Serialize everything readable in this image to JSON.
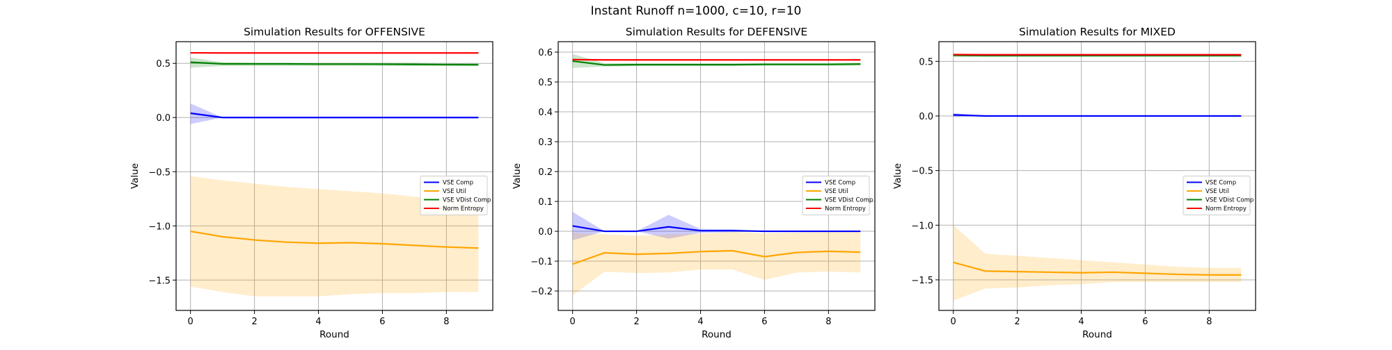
{
  "figure": {
    "suptitle": "Instant Runoff n=1000, c=10, r=10"
  },
  "colors": {
    "VSE Comp": "#0000ff",
    "VSE Util": "#ffa500",
    "VSE VDist Comp": "#008000",
    "Norm Entropy": "#ff0000"
  },
  "chart_data": [
    {
      "type": "line",
      "title": "Simulation Results for OFFENSIVE",
      "xlabel": "Round",
      "ylabel": "Value",
      "xlim": [
        -0.45,
        9.45
      ],
      "ylim": [
        -1.78,
        0.7
      ],
      "xticks": [
        0,
        2,
        4,
        6,
        8
      ],
      "yticks": [
        -1.5,
        -1.0,
        -0.5,
        0.0,
        0.5
      ],
      "ytick_labels": [
        "−1.5",
        "−1.0",
        "−0.5",
        "0.0",
        "0.5"
      ],
      "grid": true,
      "legend": "center-right",
      "x": [
        0,
        1,
        2,
        3,
        4,
        5,
        6,
        7,
        8,
        9
      ],
      "series": [
        {
          "name": "VSE Comp",
          "values": [
            0.04,
            0.0,
            0.0,
            0.0,
            0.0,
            0.0,
            0.0,
            0.0,
            0.0,
            0.0
          ],
          "lower": [
            -0.06,
            0.0,
            0.0,
            0.0,
            0.0,
            0.0,
            0.0,
            0.0,
            0.0,
            0.0
          ],
          "upper": [
            0.13,
            0.0,
            0.0,
            0.0,
            0.0,
            0.0,
            0.0,
            0.0,
            0.0,
            0.0
          ]
        },
        {
          "name": "VSE Util",
          "values": [
            -1.05,
            -1.1,
            -1.13,
            -1.15,
            -1.16,
            -1.155,
            -1.165,
            -1.18,
            -1.195,
            -1.205
          ],
          "lower": [
            -1.56,
            -1.61,
            -1.65,
            -1.65,
            -1.65,
            -1.63,
            -1.62,
            -1.62,
            -1.61,
            -1.61
          ],
          "upper": [
            -0.54,
            -0.58,
            -0.61,
            -0.64,
            -0.66,
            -0.68,
            -0.7,
            -0.73,
            -0.76,
            -0.8
          ]
        },
        {
          "name": "VSE VDist Comp",
          "values": [
            0.51,
            0.495,
            0.495,
            0.495,
            0.493,
            0.493,
            0.492,
            0.49,
            0.488,
            0.487
          ],
          "lower": [
            0.46,
            0.475,
            0.475,
            0.475,
            0.475,
            0.475,
            0.475,
            0.475,
            0.475,
            0.475
          ],
          "upper": [
            0.555,
            0.51,
            0.505,
            0.505,
            0.505,
            0.505,
            0.505,
            0.505,
            0.503,
            0.5
          ]
        },
        {
          "name": "Norm Entropy",
          "values": [
            0.597,
            0.596,
            0.596,
            0.596,
            0.596,
            0.596,
            0.596,
            0.596,
            0.596,
            0.596
          ]
        }
      ]
    },
    {
      "type": "line",
      "title": "Simulation Results for DEFENSIVE",
      "xlabel": "Round",
      "ylabel": "Value",
      "xlim": [
        -0.45,
        9.45
      ],
      "ylim": [
        -0.265,
        0.635
      ],
      "xticks": [
        0,
        2,
        4,
        6,
        8
      ],
      "yticks": [
        -0.2,
        -0.1,
        0.0,
        0.1,
        0.2,
        0.3,
        0.4,
        0.5,
        0.6
      ],
      "ytick_labels": [
        "−0.2",
        "−0.1",
        "0.0",
        "0.1",
        "0.2",
        "0.3",
        "0.4",
        "0.5",
        "0.6"
      ],
      "grid": true,
      "legend": "center-right",
      "x": [
        0,
        1,
        2,
        3,
        4,
        5,
        6,
        7,
        8,
        9
      ],
      "series": [
        {
          "name": "VSE Comp",
          "values": [
            0.018,
            0.0,
            0.0,
            0.015,
            0.002,
            0.002,
            0.0,
            0.0,
            0.0,
            0.0
          ],
          "lower": [
            -0.03,
            0.0,
            0.0,
            -0.025,
            -0.005,
            -0.003,
            0.0,
            0.0,
            0.0,
            0.0
          ],
          "upper": [
            0.065,
            0.0,
            0.0,
            0.055,
            0.008,
            0.007,
            0.0,
            0.0,
            0.0,
            0.0
          ]
        },
        {
          "name": "VSE Util",
          "values": [
            -0.11,
            -0.072,
            -0.077,
            -0.074,
            -0.068,
            -0.065,
            -0.085,
            -0.071,
            -0.067,
            -0.07
          ],
          "lower": [
            -0.215,
            -0.135,
            -0.14,
            -0.138,
            -0.128,
            -0.128,
            -0.163,
            -0.138,
            -0.135,
            -0.138
          ],
          "upper": [
            -0.005,
            -0.01,
            -0.015,
            -0.01,
            -0.008,
            -0.002,
            -0.007,
            -0.004,
            -0.002,
            -0.002
          ]
        },
        {
          "name": "VSE VDist Comp",
          "values": [
            0.57,
            0.557,
            0.558,
            0.558,
            0.558,
            0.558,
            0.559,
            0.559,
            0.559,
            0.56
          ],
          "lower": [
            0.547,
            0.552,
            0.553,
            0.553,
            0.553,
            0.553,
            0.554,
            0.554,
            0.554,
            0.555
          ],
          "upper": [
            0.594,
            0.563,
            0.563,
            0.563,
            0.563,
            0.563,
            0.564,
            0.564,
            0.564,
            0.565
          ]
        },
        {
          "name": "Norm Entropy",
          "values": [
            0.575,
            0.574,
            0.574,
            0.574,
            0.574,
            0.574,
            0.574,
            0.574,
            0.574,
            0.574
          ]
        }
      ]
    },
    {
      "type": "line",
      "title": "Simulation Results for MIXED",
      "xlabel": "Round",
      "ylabel": "Value",
      "xlim": [
        -0.45,
        9.45
      ],
      "ylim": [
        -1.78,
        0.68
      ],
      "xticks": [
        0,
        2,
        4,
        6,
        8
      ],
      "yticks": [
        -1.5,
        -1.0,
        -0.5,
        0.0,
        0.5
      ],
      "ytick_labels": [
        "−1.5",
        "−1.0",
        "−0.5",
        "0.0",
        "0.5"
      ],
      "grid": true,
      "legend": "center-right",
      "x": [
        0,
        1,
        2,
        3,
        4,
        5,
        6,
        7,
        8,
        9
      ],
      "series": [
        {
          "name": "VSE Comp",
          "values": [
            0.01,
            0.0,
            0.0,
            0.0,
            0.0,
            0.0,
            0.0,
            0.0,
            0.0,
            0.0
          ],
          "lower": [
            -0.01,
            0.0,
            0.0,
            0.0,
            0.0,
            0.0,
            0.0,
            0.0,
            0.0,
            0.0
          ],
          "upper": [
            0.025,
            0.0,
            0.0,
            0.0,
            0.0,
            0.0,
            0.0,
            0.0,
            0.0,
            0.0
          ]
        },
        {
          "name": "VSE Util",
          "values": [
            -1.34,
            -1.42,
            -1.425,
            -1.43,
            -1.435,
            -1.43,
            -1.44,
            -1.45,
            -1.455,
            -1.455
          ],
          "lower": [
            -1.69,
            -1.58,
            -1.57,
            -1.55,
            -1.54,
            -1.52,
            -1.52,
            -1.52,
            -1.52,
            -1.52
          ],
          "upper": [
            -1.0,
            -1.26,
            -1.28,
            -1.3,
            -1.32,
            -1.34,
            -1.36,
            -1.38,
            -1.39,
            -1.39
          ]
        },
        {
          "name": "VSE VDist Comp",
          "values": [
            0.555,
            0.553,
            0.553,
            0.553,
            0.553,
            0.553,
            0.553,
            0.553,
            0.553,
            0.553
          ],
          "lower": [
            0.54,
            0.54,
            0.54,
            0.54,
            0.54,
            0.54,
            0.54,
            0.54,
            0.54,
            0.54
          ],
          "upper": [
            0.57,
            0.568,
            0.568,
            0.568,
            0.568,
            0.568,
            0.568,
            0.568,
            0.568,
            0.568
          ]
        },
        {
          "name": "Norm Entropy",
          "values": [
            0.562,
            0.56,
            0.56,
            0.56,
            0.56,
            0.56,
            0.56,
            0.56,
            0.56,
            0.56
          ]
        }
      ]
    }
  ]
}
